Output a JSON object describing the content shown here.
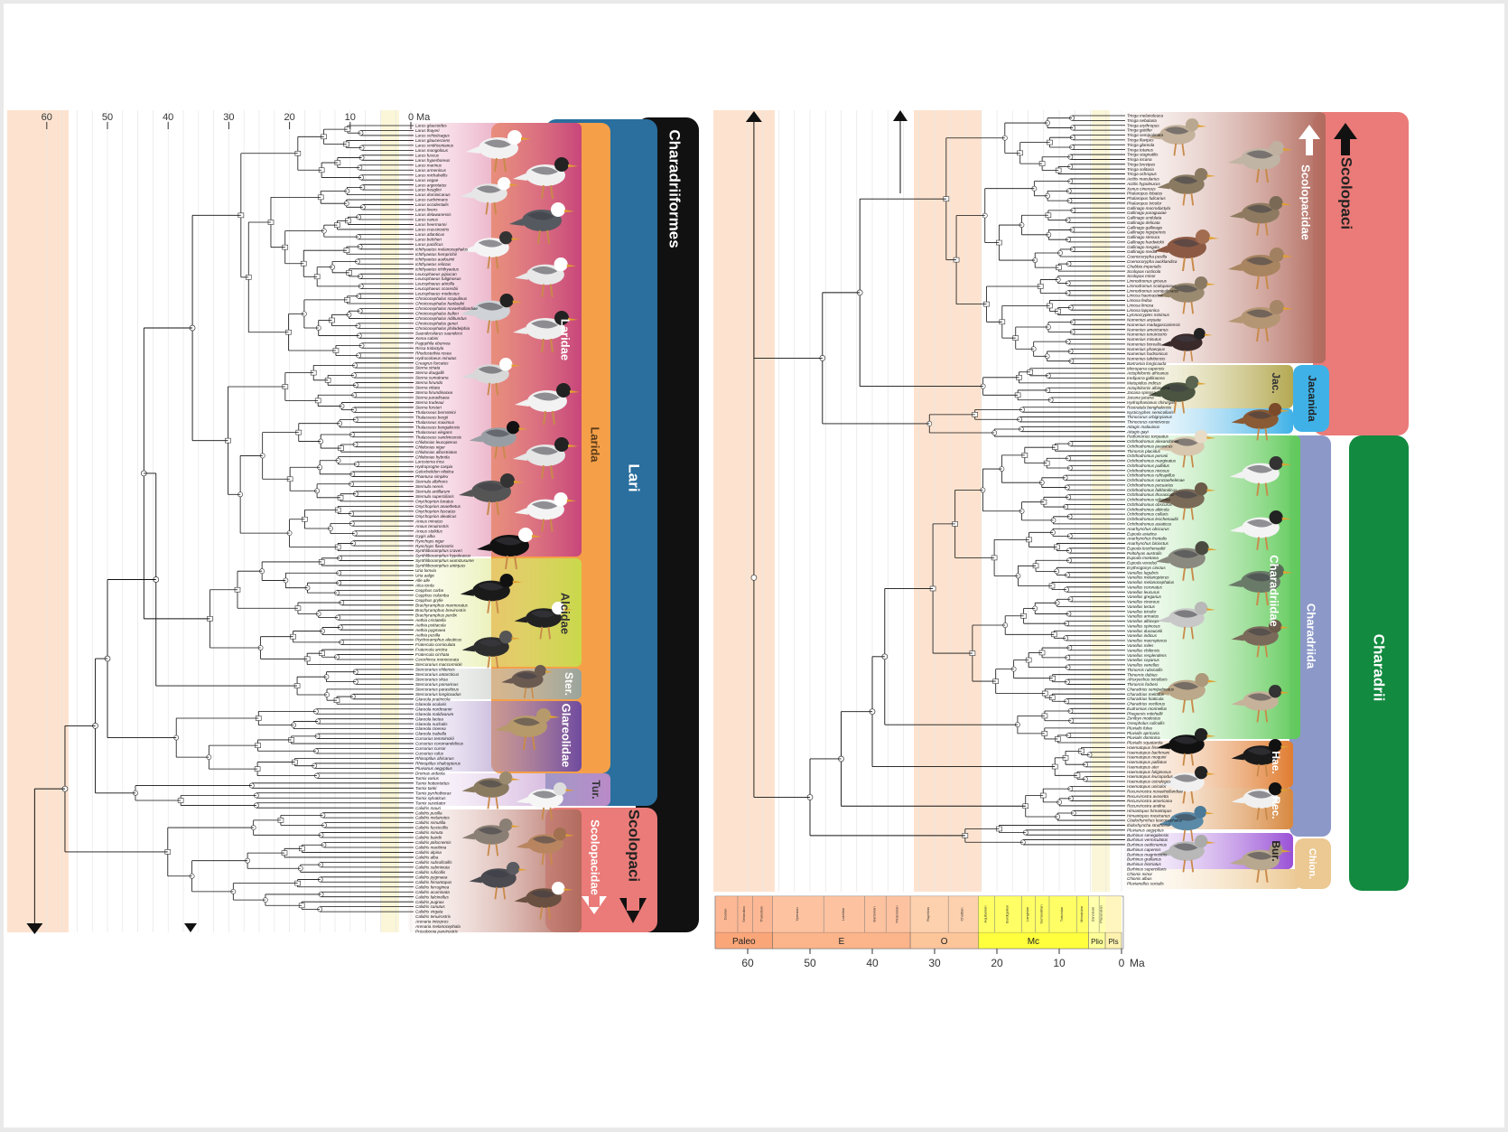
{
  "figure": {
    "unit": "Ma",
    "left_axis_ticks": [
      "60",
      "50",
      "40",
      "30",
      "20",
      "10",
      "0"
    ],
    "right_axis_ticks": [
      "60",
      "50",
      "40",
      "30",
      "20",
      "10",
      "0"
    ],
    "epoch_row": [
      "Paleo",
      "E",
      "O",
      "Mc",
      "Plio",
      "Pls"
    ],
    "stage_row": [
      "Danian",
      "Selandian",
      "Thanetian",
      "Ypresian",
      "Lutetian",
      "Bartonian",
      "Priabonian",
      "Rupelian",
      "Chattian",
      "Aquitanian",
      "Burdigalian",
      "Langhian",
      "Serravallian",
      "Tortonian",
      "Messinian",
      "Zanclean",
      "Piacenzian"
    ]
  },
  "left_panel": {
    "order": "Charadriiformes",
    "suborder": "Lari",
    "families": [
      {
        "label": "Laridae",
        "color": "#c8467a"
      },
      {
        "label": "Larida",
        "color": "#f5a048"
      },
      {
        "label": "Alcidae",
        "color": "#c9d84a"
      },
      {
        "label": "Ster.",
        "color": "#9aa49c"
      },
      {
        "label": "Glareolidae",
        "color": "#6f4a9e"
      },
      {
        "label": "Tur.",
        "color": "#b98ac7"
      },
      {
        "label": "Scolopacidae",
        "color": "#b16a5e"
      },
      {
        "label": "Scolopaci",
        "color": "#ea7b78"
      }
    ],
    "tip_labels": [
      "Larus glaucoides",
      "Larus thayeri",
      "Larus schistisagus",
      "Larus glaucescens",
      "Larus smithsonianus",
      "Larus mongolicus",
      "Larus fuscus",
      "Larus hyperboreus",
      "Larus marinus",
      "Larus armenicus",
      "Larus michahellis",
      "Larus vegae",
      "Larus argentatus",
      "Larus heuglini",
      "Larus dominicanus",
      "Larus cachinnans",
      "Larus occidentalis",
      "Larus livens",
      "Larus delawarensis",
      "Larus canus",
      "Larus heermanni",
      "Larus crassirostris",
      "Larus atlanticus",
      "Larus belcheri",
      "Larus pacificus",
      "Ichthyaetus melanocephalus",
      "Ichthyaetus hemprichii",
      "Ichthyaetus audouinii",
      "Ichthyaetus relictus",
      "Ichthyaetus ichthyaetus",
      "Leucophaeus pipixcan",
      "Leucophaeus fuliginosus",
      "Leucophaeus atricilla",
      "Leucophaeus scoresbii",
      "Leucophaeus modestus",
      "Chroicocephalus scopulinus",
      "Chroicocephalus hartlaubii",
      "Chroicocephalus novaehollandiae",
      "Chroicocephalus bulleri",
      "Chroicocephalus ridibundus",
      "Chroicocephalus genei",
      "Chroicocephalus philadelphia",
      "Saundersilarus saundersi",
      "Xema sabini",
      "Pagophila eburnea",
      "Rissa tridactyla",
      "Rhodostethia rosea",
      "Hydrocoloeus minutus",
      "Creagrus furcatus",
      "Sterna striata",
      "Sterna dougallii",
      "Sterna sumatrana",
      "Sterna hirundo",
      "Sterna vittata",
      "Sterna hirundinacea",
      "Sterna paradisaea",
      "Sterna trudeaui",
      "Sterna forsteri",
      "Thalasseus bernsteini",
      "Thalasseus bergii",
      "Thalasseus maximus",
      "Thalasseus bengalensis",
      "Thalasseus elegans",
      "Thalasseus sandvicensis",
      "Chlidonias leucopterus",
      "Chlidonias niger",
      "Chlidonias albostriatus",
      "Chlidonias hybrida",
      "Larosterna inca",
      "Hydroprogne caspia",
      "Gelochelidon nilotica",
      "Phaetusa simplex",
      "Sternula albifrons",
      "Sternula nereis",
      "Sternula antillarum",
      "Sternula superciliaris",
      "Onychoprion lunatus",
      "Onychoprion anaethetus",
      "Onychoprion fuscatus",
      "Onychoprion aleuticus",
      "Anous minutus",
      "Anous tenuirostris",
      "Anous stolidus",
      "Gygis alba",
      "Rynchops niger",
      "Rynchops flavirostris",
      "Synthliboramphus craveri",
      "Synthliboramphus hypoleucus",
      "Synthliboramphus wumizusume",
      "Synthliboramphus antiquus",
      "Uria lomvia",
      "Uria aalge",
      "Alle alle",
      "Alca torda",
      "Cepphus carbo",
      "Cepphus columba",
      "Cepphus grylle",
      "Brachyramphus marmoratus",
      "Brachyramphus brevirostris",
      "Brachyramphus perdix",
      "Aethia cristatella",
      "Aethia psittacula",
      "Aethia pygmaea",
      "Aethia pusilla",
      "Ptychoramphus aleuticus",
      "Fratercula corniculata",
      "Fratercula arctica",
      "Fratercula cirrhata",
      "Cerorhinca monocerata",
      "Stercorarius maccormicki",
      "Stercorarius chilensis",
      "Stercorarius antarcticus",
      "Stercorarius skua",
      "Stercorarius pomarinus",
      "Stercorarius parasiticus",
      "Stercorarius longicaudus",
      "Glareola pratincola",
      "Glareola ocularis",
      "Glareola nordmanni",
      "Glareola maldivarum",
      "Glareola lactea",
      "Glareola nuchalis",
      "Glareola cinerea",
      "Glareola isabella",
      "Cursorius temminckii",
      "Cursorius coromandelicus",
      "Cursorius cursor",
      "Cursorius rufus",
      "Rhinoptilus africanus",
      "Rhinoptilus chalcopterus",
      "Pluvianus aegyptius",
      "Dromas ardeola",
      "Turnix varius",
      "Turnix hottentottus",
      "Turnix tanki",
      "Turnix pyrrhothorax",
      "Turnix sylvaticus",
      "Turnix suscitator",
      "Calidris mauri",
      "Calidris pusilla",
      "Calidris melanotos",
      "Calidris minutilla",
      "Calidris fuscicollis",
      "Calidris minuta",
      "Calidris bairdii",
      "Calidris ptilocnemis",
      "Calidris maritima",
      "Calidris alpina",
      "Calidris alba",
      "Calidris subruficollis",
      "Calidris subminuta",
      "Calidris ruficollis",
      "Calidris pygmaea",
      "Calidris himantopus",
      "Calidris ferruginea",
      "Calidris acuminata",
      "Calidris falcinellus",
      "Calidris pugnax",
      "Calidris canutus",
      "Calidris virgata",
      "Calidris tenuirostris",
      "Arenaria interpres",
      "Arenaria melanocephala",
      "Prosobonia parvirostris"
    ]
  },
  "right_panel": {
    "suborder_top": "Scolopaci",
    "suborder_bottom": "Charadrii",
    "families": [
      {
        "label": "Scolopacidae",
        "color": "#b16a5e"
      },
      {
        "label": "Jac.",
        "color": "#b3a852"
      },
      {
        "label": "Jacanida",
        "color": "#3fb1e7"
      },
      {
        "label": "Charadriidae",
        "color": "#5fca59"
      },
      {
        "label": "Charadriida",
        "color": "#8b98c8"
      },
      {
        "label": "Hae.",
        "color": "#e07c30"
      },
      {
        "label": "Rec.",
        "color": "#d7883f"
      },
      {
        "label": "Bur.",
        "color": "#9950d6"
      },
      {
        "label": "Chion.",
        "color": "#ecc892"
      }
    ],
    "tip_labels": [
      "Tringa melanoleuca",
      "Tringa nebularia",
      "Tringa erythropus",
      "Tringa guttifer",
      "Tringa semipalmata",
      "Tringa flavipes",
      "Tringa glareola",
      "Tringa totanus",
      "Tringa stagnatilis",
      "Tringa incana",
      "Tringa brevipes",
      "Tringa solitaria",
      "Tringa ochropus",
      "Actitis macularius",
      "Actitis hypoleucos",
      "Xenus cinereus",
      "Phalaropus lobatus",
      "Phalaropus fulicarius",
      "Phalaropus tricolor",
      "Gallinago macrodactyla",
      "Gallinago paraguaiae",
      "Gallinago undulata",
      "Gallinago delicata",
      "Gallinago gallinago",
      "Gallinago nigripennis",
      "Gallinago stenura",
      "Gallinago hardwickii",
      "Gallinago megala",
      "Gallinago media",
      "Coenocorypha pusilla",
      "Coenocorypha aucklandica",
      "Chubbia imperialis",
      "Scolopax rusticola",
      "Scolopax minor",
      "Limnodromus griseus",
      "Limnodromus scolopaceus",
      "Limnodromus semipalmatus",
      "Limosa haemastica",
      "Limosa fedoa",
      "Limosa limosa",
      "Limosa lapponica",
      "Lymnocryptes minimus",
      "Numenius arquata",
      "Numenius madagascariensis",
      "Numenius americanus",
      "Numenius tenuirostris",
      "Numenius minutus",
      "Numenius borealis",
      "Numenius phaeopus",
      "Numenius hudsonicus",
      "Numenius tahitiensis",
      "Bartramia longicauda",
      "Microparra capensis",
      "Actophilornis africanus",
      "Irediparra gallinacea",
      "Metopidius indicus",
      "Actophilornis albinucha",
      "Jacana spinosa",
      "Jacana jacana",
      "Hydrophasianus chirurgus",
      "Rostratula benghalensis",
      "Nycticryphes semicollaris",
      "Thinocorus orbignyianus",
      "Thinocorus rumicivorus",
      "Attagis malouinus",
      "Attagis gayi",
      "Pedionomus torquatus",
      "Ochthodromus alexandrinus",
      "Ochthodromus javanicus",
      "Thinornis placidus",
      "Ochthodromus peronii",
      "Ochthodromus marginatus",
      "Ochthodromus pallidus",
      "Ochthodromus nivosus",
      "Ochthodromus ruficapillus",
      "Ochthodromus sanctaehelenae",
      "Ochthodromus pecuarius",
      "Ochthodromus falklandicus",
      "Ochthodromus thoracicus",
      "Ochthodromus wilsonia",
      "Ochthodromus obscurus",
      "Ochthodromus altiicola",
      "Ochthodromus collaris",
      "Ochthodromus leschenaultii",
      "Ochthodromus asiaticus",
      "Anarhynchus obscurus",
      "Eupoda asiatica",
      "Anarhynchus frontalis",
      "Anarhynchus bicinctus",
      "Eupoda leschenaultii",
      "Peltohyas australis",
      "Eupoda montana",
      "Eupoda veredus",
      "Erythrogonys cinctus",
      "Vanellus lugubris",
      "Vanellus melanopterus",
      "Vanellus melanocephalus",
      "Vanellus coronatus",
      "Vanellus leucurus",
      "Vanellus gregarius",
      "Vanellus cinereus",
      "Vanellus tectus",
      "Vanellus tricolor",
      "Vanellus armatus",
      "Vanellus albiceps",
      "Vanellus spinosus",
      "Vanellus duvaucelii",
      "Vanellus indicus",
      "Vanellus macropterus",
      "Vanellus miles",
      "Vanellus chilensis",
      "Vanellus resplendens",
      "Vanellus cayanus",
      "Vanellus vanellus",
      "Thinornis rubricollis",
      "Thinornis dubius",
      "Afroxyechus tricollaris",
      "Thinornis forbesi",
      "Charadrius semipalmatus",
      "Charadrius melodus",
      "Charadrius hiaticula",
      "Charadrius vociferus",
      "Eudromias morinellus",
      "Phegornis mitchellii",
      "Zonibyx modestus",
      "Oreopholus ruficollis",
      "Pluvialis fulva",
      "Pluvialis apricaria",
      "Pluvialis dominica",
      "Pluvialis squatarola",
      "Haematopus finschi",
      "Haematopus bachmani",
      "Haematopus moquini",
      "Haematopus palliatus",
      "Haematopus ater",
      "Haematopus fuliginosus",
      "Haematopus leucopodus",
      "Haematopus ostralegus",
      "Haematopus unicolor",
      "Recurvirostra novaehollandiae",
      "Recurvirostra avosetta",
      "Recurvirostra americana",
      "Recurvirostra andina",
      "Himantopus himantopus",
      "Himantopus mexicanus",
      "Cladorhynchus leucocephalus",
      "Ibidorhyncha struthersii",
      "Pluvianus aegyptius",
      "Burhinus senegalensis",
      "Burhinus vermiculatus",
      "Burhinus oedicnemus",
      "Burhinus capensis",
      "Burhinus magnirostris",
      "Burhinus grallarius",
      "Burhinus bistriatus",
      "Burhinus superciliaris",
      "Chionis minor",
      "Chionis albus",
      "Pluvianellus socialis"
    ]
  }
}
